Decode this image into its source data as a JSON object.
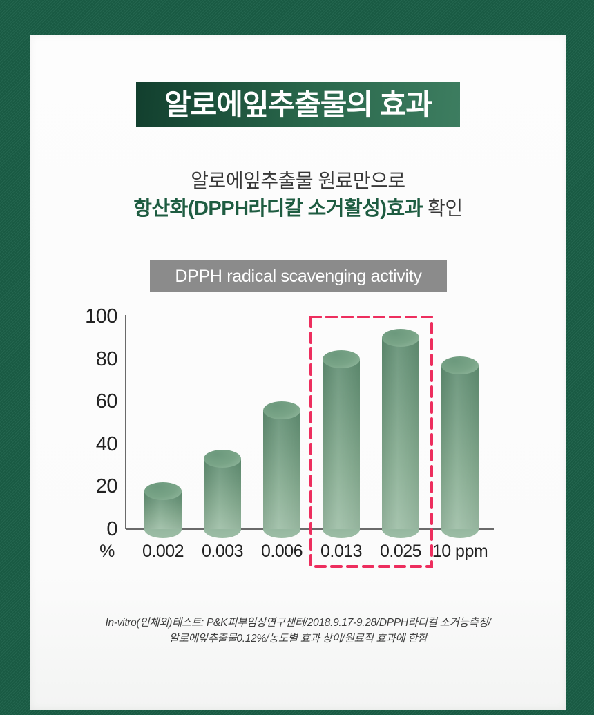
{
  "frame": {
    "border_color": "#1a5f47"
  },
  "title_banner": {
    "text": "알로에잎추출물의 효과",
    "bg_from": "#123f2e",
    "bg_to": "#3d7d60",
    "text_color": "#ffffff"
  },
  "subtitle": {
    "line1": "알로에잎추출물 원료만으로",
    "line2_highlight": "항산화(DPPH라디칼 소거활성)효과",
    "line2_rest": " 확인",
    "highlight_color": "#1e5c41"
  },
  "chart_header": {
    "text": "DPPH radical scavenging activity",
    "bg": "#8b8b8b",
    "text_color": "#ffffff"
  },
  "chart_data": {
    "type": "bar",
    "style": "3d-cylinder",
    "title": "DPPH radical scavenging activity",
    "unit_label": "%",
    "categories": [
      "0.002",
      "0.003",
      "0.006",
      "0.013",
      "0.025",
      "10 ppm"
    ],
    "values": [
      18,
      33,
      56,
      80,
      90,
      77
    ],
    "ylabel": "",
    "xlabel": "",
    "ylim": [
      0,
      100
    ],
    "yticks": [
      0,
      20,
      40,
      60,
      80,
      100
    ],
    "grid": false,
    "legend": false,
    "bar_color_top": "#5f8d71",
    "bar_color_bottom": "#9cbda5",
    "highlight": {
      "categories": [
        "0.013",
        "0.025"
      ],
      "style": "dashed-box",
      "color": "#ed2e5e"
    }
  },
  "footnote": {
    "line1": "In-vitro(인체외)테스트: P&K피부임상연구센터/2018.9.17-9.28/DPPH라디컬 소거능측정/",
    "line2": "알로에잎추출물0.12%/농도별 효과 상이/원료적 효과에 한함"
  }
}
